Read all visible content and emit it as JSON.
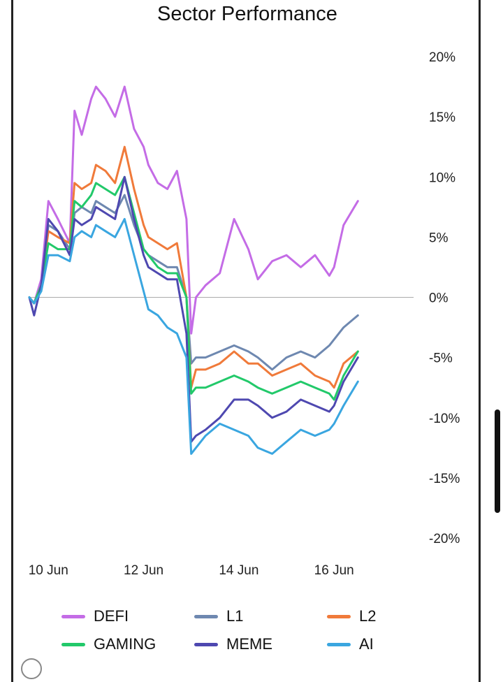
{
  "chart_data": {
    "type": "line",
    "title": "Sector Performance",
    "xlabel": "",
    "ylabel": "",
    "x_ticks": [
      "10 Jun",
      "12 Jun",
      "14 Jun",
      "16 Jun"
    ],
    "y_ticks": [
      "20%",
      "15%",
      "10%",
      "5%",
      "0%",
      "-5%",
      "-10%",
      "-15%",
      "-20%"
    ],
    "ylim": [
      -20,
      20
    ],
    "xlim": [
      "9.6 Jun",
      "17.6 Jun"
    ],
    "y_axis_side": "right",
    "zero_line": true,
    "grid": false,
    "legend_position": "bottom",
    "x": [
      9.6,
      9.7,
      9.85,
      10.0,
      10.2,
      10.45,
      10.55,
      10.7,
      10.9,
      11.0,
      11.2,
      11.4,
      11.6,
      11.8,
      12.0,
      12.1,
      12.3,
      12.5,
      12.7,
      12.9,
      13.0,
      13.1,
      13.3,
      13.6,
      13.9,
      14.2,
      14.4,
      14.7,
      15.0,
      15.3,
      15.6,
      15.9,
      16.0,
      16.2,
      16.5
    ],
    "series": [
      {
        "name": "DEFI",
        "color": "#c46ce6",
        "values": [
          0.0,
          -0.5,
          1.5,
          8.0,
          6.5,
          4.5,
          15.5,
          13.5,
          16.5,
          17.5,
          16.5,
          15.0,
          17.5,
          14.0,
          12.5,
          11.0,
          9.5,
          9.0,
          10.5,
          6.5,
          -3.0,
          0.0,
          1.0,
          2.0,
          6.5,
          4.0,
          1.5,
          3.0,
          3.5,
          2.5,
          3.5,
          1.8,
          2.5,
          6.0,
          8.0
        ]
      },
      {
        "name": "L1",
        "color": "#6e88b0",
        "values": [
          0.0,
          -0.5,
          1.0,
          6.0,
          5.5,
          4.0,
          7.0,
          7.5,
          7.0,
          8.0,
          7.5,
          7.0,
          8.5,
          6.0,
          4.0,
          3.5,
          3.0,
          2.5,
          2.5,
          0.0,
          -5.5,
          -5.0,
          -5.0,
          -4.5,
          -4.0,
          -4.5,
          -5.0,
          -6.0,
          -5.0,
          -4.5,
          -5.0,
          -4.0,
          -3.5,
          -2.5,
          -1.5
        ]
      },
      {
        "name": "L2",
        "color": "#f07a3a",
        "values": [
          0.0,
          -0.5,
          1.0,
          5.5,
          5.0,
          4.5,
          9.5,
          9.0,
          9.5,
          11.0,
          10.5,
          9.5,
          12.5,
          9.0,
          6.0,
          5.0,
          4.5,
          4.0,
          4.5,
          0.0,
          -7.5,
          -6.0,
          -6.0,
          -5.5,
          -4.5,
          -5.5,
          -5.5,
          -6.5,
          -6.0,
          -5.5,
          -6.5,
          -7.0,
          -7.5,
          -5.5,
          -4.5
        ]
      },
      {
        "name": "GAMING",
        "color": "#22c96a",
        "values": [
          0.0,
          -0.5,
          1.0,
          4.5,
          4.0,
          4.0,
          8.0,
          7.5,
          8.5,
          9.5,
          9.0,
          8.5,
          10.0,
          7.0,
          4.0,
          3.5,
          2.5,
          2.0,
          2.0,
          0.0,
          -8.0,
          -7.5,
          -7.5,
          -7.0,
          -6.5,
          -7.0,
          -7.5,
          -8.0,
          -7.5,
          -7.0,
          -7.5,
          -8.0,
          -8.5,
          -6.5,
          -4.5
        ]
      },
      {
        "name": "MEME",
        "color": "#4e48b0",
        "values": [
          0.0,
          -1.5,
          1.0,
          6.5,
          5.5,
          3.5,
          6.5,
          6.0,
          6.5,
          7.5,
          7.0,
          6.5,
          10.0,
          6.5,
          3.5,
          2.5,
          2.0,
          1.5,
          1.5,
          -3.0,
          -12.0,
          -11.5,
          -11.0,
          -10.0,
          -8.5,
          -8.5,
          -9.0,
          -10.0,
          -9.5,
          -8.5,
          -9.0,
          -9.5,
          -9.0,
          -7.0,
          -5.0
        ]
      },
      {
        "name": "AI",
        "color": "#3aa6e0",
        "values": [
          0.0,
          -0.5,
          0.5,
          3.5,
          3.5,
          3.0,
          5.0,
          5.5,
          5.0,
          6.0,
          5.5,
          5.0,
          6.5,
          3.5,
          0.5,
          -1.0,
          -1.5,
          -2.5,
          -3.0,
          -5.0,
          -13.0,
          -12.5,
          -11.5,
          -10.5,
          -11.0,
          -11.5,
          -12.5,
          -13.0,
          -12.0,
          -11.0,
          -11.5,
          -11.0,
          -10.5,
          -9.0,
          -7.0
        ]
      }
    ]
  }
}
